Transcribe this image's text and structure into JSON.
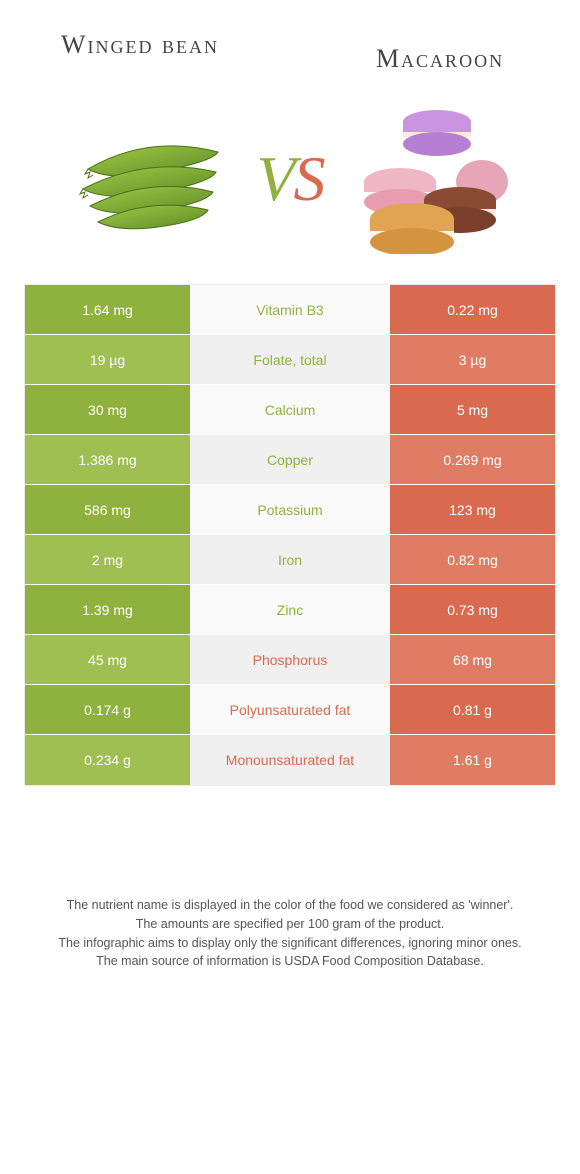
{
  "colors": {
    "green_dark": "#8fb23e",
    "green_light": "#9fbf53",
    "orange_dark": "#d96a4f",
    "orange_light": "#df7c63",
    "gray_light": "#fafafa",
    "gray_dark": "#f0f0f0",
    "text": "#444444"
  },
  "header": {
    "left_title": "Winged bean",
    "right_title": "Macaroon",
    "vs_v": "V",
    "vs_s": "S"
  },
  "rows": [
    {
      "left": "1.64 mg",
      "label": "Vitamin B3",
      "right": "0.22 mg",
      "winner": "left"
    },
    {
      "left": "19 µg",
      "label": "Folate, total",
      "right": "3 µg",
      "winner": "left"
    },
    {
      "left": "30 mg",
      "label": "Calcium",
      "right": "5 mg",
      "winner": "left"
    },
    {
      "left": "1.386 mg",
      "label": "Copper",
      "right": "0.269 mg",
      "winner": "left"
    },
    {
      "left": "586 mg",
      "label": "Potassium",
      "right": "123 mg",
      "winner": "left"
    },
    {
      "left": "2 mg",
      "label": "Iron",
      "right": "0.82 mg",
      "winner": "left"
    },
    {
      "left": "1.39 mg",
      "label": "Zinc",
      "right": "0.73 mg",
      "winner": "left"
    },
    {
      "left": "45 mg",
      "label": "Phosphorus",
      "right": "68 mg",
      "winner": "right"
    },
    {
      "left": "0.174 g",
      "label": "Polyunsaturated fat",
      "right": "0.81 g",
      "winner": "right"
    },
    {
      "left": "0.234 g",
      "label": "Monounsaturated fat",
      "right": "1.61 g",
      "winner": "right"
    }
  ],
  "footer": {
    "line1": "The nutrient name is displayed in the color of the food we considered as 'winner'.",
    "line2": "The amounts are specified per 100 gram of the product.",
    "line3": "The infographic aims to display only the significant differences, ignoring minor ones.",
    "line4": "The main source of information is USDA Food Composition Database."
  }
}
